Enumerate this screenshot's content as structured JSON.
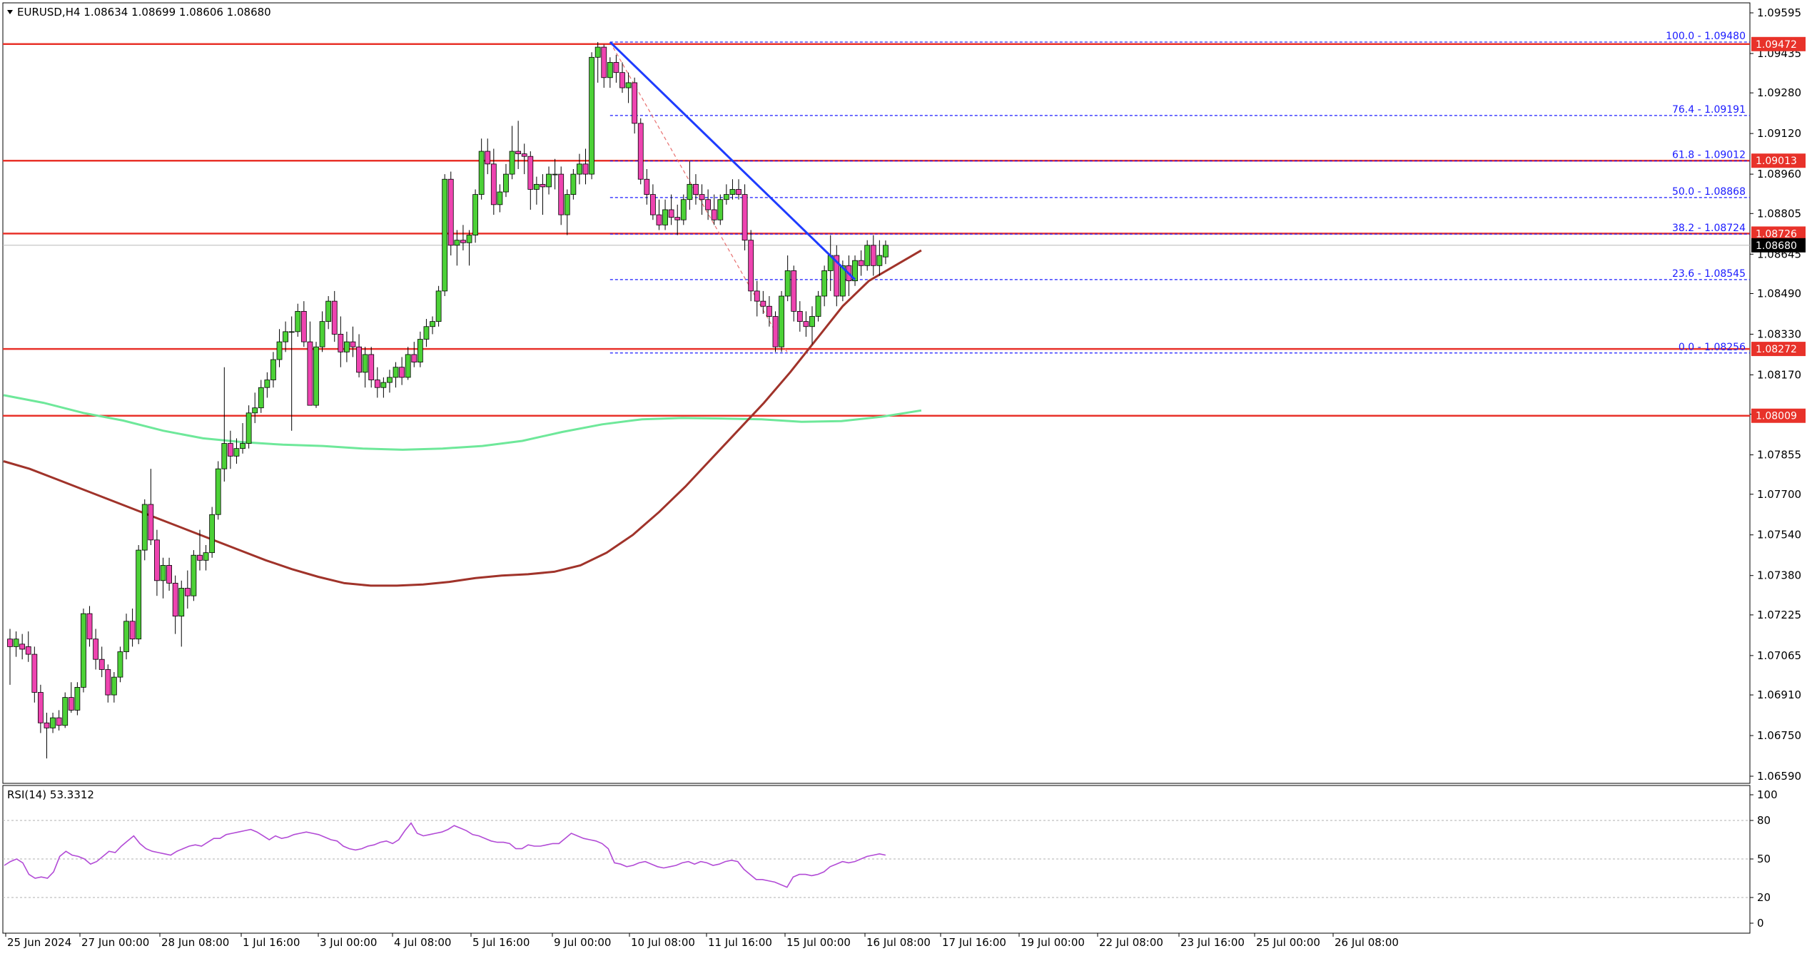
{
  "header": {
    "symbol_line": "EURUSD,H4  1.08634 1.08699 1.08606 1.08680",
    "rsi_line": "RSI(14) 53.3312"
  },
  "colors": {
    "bull": "#4cd137",
    "bear": "#ee44b0",
    "resistance": "#e8322a",
    "trend": "#1e3cff",
    "fib": "#1a1aff",
    "ma_fast": "#a0332a",
    "ma_slow": "#6ee89a",
    "rsi": "#b24bd6",
    "current": "#000000"
  },
  "chart_data": {
    "type": "candlestick",
    "symbol": "EURUSD",
    "timeframe": "H4",
    "ohlc": {
      "open": 1.08634,
      "high": 1.08699,
      "low": 1.08606,
      "close": 1.0868
    },
    "price_ticks": [
      "1.09595",
      "1.09435",
      "1.09280",
      "1.09120",
      "1.08960",
      "1.08805",
      "1.08645",
      "1.08490",
      "1.08330",
      "1.08170",
      "1.08015",
      "1.07855",
      "1.07700",
      "1.07540",
      "1.07380",
      "1.07225",
      "1.07065",
      "1.06910",
      "1.06750",
      "1.06590"
    ],
    "price_range": [
      1.0659,
      1.09595
    ],
    "time_labels": [
      "25 Jun 2024",
      "27 Jun 00:00",
      "28 Jun 08:00",
      "1 Jul 16:00",
      "3 Jul 00:00",
      "4 Jul 08:00",
      "5 Jul 16:00",
      "9 Jul 00:00",
      "10 Jul 08:00",
      "11 Jul 16:00",
      "15 Jul 00:00",
      "16 Jul 08:00",
      "17 Jul 16:00",
      "19 Jul 00:00",
      "22 Jul 08:00",
      "23 Jul 16:00",
      "25 Jul 00:00",
      "26 Jul 08:00"
    ],
    "resistance_levels": [
      {
        "price": 1.09472,
        "label": "1.09472"
      },
      {
        "price": 1.09013,
        "label": "1.09013"
      },
      {
        "price": 1.08726,
        "label": "1.08726"
      },
      {
        "price": 1.08272,
        "label": "1.08272"
      },
      {
        "price": 1.08009,
        "label": "1.08009"
      }
    ],
    "current_price": {
      "price": 1.0868,
      "label": "1.08680"
    },
    "fibonacci": [
      {
        "price": 1.0948,
        "label": "100.0 - 1.09480"
      },
      {
        "price": 1.09191,
        "label": "76.4 - 1.09191"
      },
      {
        "price": 1.09012,
        "label": "61.8 - 1.09012"
      },
      {
        "price": 1.08868,
        "label": "50.0 - 1.08868"
      },
      {
        "price": 1.08724,
        "label": "38.2 - 1.08724"
      },
      {
        "price": 1.08545,
        "label": "23.6 - 1.08545"
      },
      {
        "price": 1.08256,
        "label": "0.0 - 1.08256"
      }
    ],
    "fib_start_index": 98,
    "fib_swing": {
      "from_index": 98,
      "from_price": 1.0948,
      "to_index": 127,
      "to_price": 1.08256
    },
    "trendline": {
      "from_index": 98,
      "from_price": 1.0948,
      "to_index": 138,
      "to_price": 1.08545
    },
    "ma_fast": [
      1.0783,
      1.078,
      1.0776,
      1.0772,
      1.0768,
      1.0764,
      1.076,
      1.0756,
      1.0752,
      1.0748,
      1.0744,
      1.07405,
      1.07375,
      1.0735,
      1.0734,
      1.0734,
      1.07345,
      1.07355,
      1.0737,
      1.0738,
      1.07385,
      1.07395,
      1.0742,
      1.0747,
      1.0754,
      1.0763,
      1.0773,
      1.0784,
      1.0795,
      1.0806,
      1.0818,
      1.0831,
      1.0844,
      1.0854,
      1.086,
      1.0866
    ],
    "ma_slow": [
      1.0809,
      1.0806,
      1.0802,
      1.0799,
      1.0795,
      1.0792,
      1.07905,
      1.07895,
      1.0789,
      1.0788,
      1.07875,
      1.0788,
      1.0789,
      1.0791,
      1.07945,
      1.07975,
      1.07995,
      1.08,
      1.07998,
      1.07995,
      1.07985,
      1.07988,
      1.08005,
      1.0803
    ],
    "candles": [
      [
        1.0713,
        1.0717,
        1.0695,
        1.071
      ],
      [
        1.071,
        1.0716,
        1.0706,
        1.0713
      ],
      [
        1.0711,
        1.0715,
        1.0705,
        1.0709
      ],
      [
        1.071,
        1.0716,
        1.0704,
        1.0707
      ],
      [
        1.0707,
        1.071,
        1.0688,
        1.0692
      ],
      [
        1.0692,
        1.0695,
        1.0676,
        1.068
      ],
      [
        1.068,
        1.0684,
        1.0666,
        1.0678
      ],
      [
        1.0678,
        1.0684,
        1.0676,
        1.0682
      ],
      [
        1.0682,
        1.0685,
        1.0677,
        1.0679
      ],
      [
        1.0679,
        1.0692,
        1.0678,
        1.069
      ],
      [
        1.069,
        1.0696,
        1.0684,
        1.0685
      ],
      [
        1.0685,
        1.0696,
        1.0683,
        1.0694
      ],
      [
        1.0694,
        1.0725,
        1.0692,
        1.0723
      ],
      [
        1.0723,
        1.0726,
        1.071,
        1.0713
      ],
      [
        1.0713,
        1.0717,
        1.0701,
        1.0705
      ],
      [
        1.0705,
        1.071,
        1.0698,
        1.0701
      ],
      [
        1.0701,
        1.0703,
        1.0688,
        1.0691
      ],
      [
        1.0691,
        1.07,
        1.0688,
        1.0698
      ],
      [
        1.0698,
        1.071,
        1.0696,
        1.0708
      ],
      [
        1.0708,
        1.0723,
        1.0705,
        1.072
      ],
      [
        1.072,
        1.0725,
        1.071,
        1.0713
      ],
      [
        1.0713,
        1.075,
        1.0711,
        1.0748
      ],
      [
        1.0748,
        1.0768,
        1.0744,
        1.0766
      ],
      [
        1.0766,
        1.078,
        1.075,
        1.0752
      ],
      [
        1.0752,
        1.0756,
        1.073,
        1.0736
      ],
      [
        1.0736,
        1.0745,
        1.0729,
        1.0742
      ],
      [
        1.0742,
        1.0745,
        1.0732,
        1.0735
      ],
      [
        1.0735,
        1.0738,
        1.0715,
        1.0722
      ],
      [
        1.0722,
        1.0736,
        1.071,
        1.0733
      ],
      [
        1.0733,
        1.074,
        1.0725,
        1.073
      ],
      [
        1.073,
        1.0748,
        1.0728,
        1.0746
      ],
      [
        1.0746,
        1.0756,
        1.074,
        1.0744
      ],
      [
        1.0744,
        1.075,
        1.074,
        1.0747
      ],
      [
        1.0747,
        1.0765,
        1.0745,
        1.0762
      ],
      [
        1.0762,
        1.0783,
        1.076,
        1.078
      ],
      [
        1.078,
        1.082,
        1.0775,
        1.079
      ],
      [
        1.079,
        1.0795,
        1.078,
        1.0785
      ],
      [
        1.0785,
        1.0792,
        1.0782,
        1.0788
      ],
      [
        1.0788,
        1.0798,
        1.0786,
        1.079
      ],
      [
        1.079,
        1.0805,
        1.0788,
        1.0802
      ],
      [
        1.0802,
        1.081,
        1.0798,
        1.0804
      ],
      [
        1.0804,
        1.0815,
        1.0802,
        1.0812
      ],
      [
        1.0812,
        1.0818,
        1.0808,
        1.0815
      ],
      [
        1.0815,
        1.0826,
        1.0812,
        1.0823
      ],
      [
        1.0823,
        1.0835,
        1.082,
        1.083
      ],
      [
        1.083,
        1.0838,
        1.0826,
        1.0834
      ],
      [
        1.0834,
        1.084,
        1.0795,
        1.0834
      ],
      [
        1.0834,
        1.0845,
        1.0832,
        1.0842
      ],
      [
        1.0842,
        1.0846,
        1.0828,
        1.083
      ],
      [
        1.083,
        1.0838,
        1.0805,
        1.0805
      ],
      [
        1.0805,
        1.083,
        1.0804,
        1.0828
      ],
      [
        1.0828,
        1.0842,
        1.0826,
        1.0838
      ],
      [
        1.0838,
        1.0848,
        1.0835,
        1.0846
      ],
      [
        1.0846,
        1.085,
        1.083,
        1.0833
      ],
      [
        1.0833,
        1.084,
        1.082,
        1.0826
      ],
      [
        1.0826,
        1.0834,
        1.0822,
        1.083
      ],
      [
        1.083,
        1.0836,
        1.0824,
        1.0828
      ],
      [
        1.0828,
        1.0833,
        1.0816,
        1.0818
      ],
      [
        1.0818,
        1.0828,
        1.0812,
        1.0825
      ],
      [
        1.0825,
        1.0828,
        1.0812,
        1.0815
      ],
      [
        1.0815,
        1.082,
        1.0808,
        1.0812
      ],
      [
        1.0812,
        1.0816,
        1.0808,
        1.0814
      ],
      [
        1.0814,
        1.0819,
        1.081,
        1.0816
      ],
      [
        1.0816,
        1.0822,
        1.0812,
        1.082
      ],
      [
        1.082,
        1.0824,
        1.0813,
        1.0816
      ],
      [
        1.0816,
        1.0828,
        1.0815,
        1.0825
      ],
      [
        1.0825,
        1.083,
        1.082,
        1.0822
      ],
      [
        1.0822,
        1.0834,
        1.082,
        1.0831
      ],
      [
        1.0831,
        1.0839,
        1.0828,
        1.0836
      ],
      [
        1.0836,
        1.084,
        1.0833,
        1.0838
      ],
      [
        1.0838,
        1.0852,
        1.0836,
        1.085
      ],
      [
        1.085,
        1.0896,
        1.0848,
        1.0894
      ],
      [
        1.0894,
        1.0897,
        1.0864,
        1.0868
      ],
      [
        1.0868,
        1.0874,
        1.086,
        1.087
      ],
      [
        1.087,
        1.0876,
        1.0866,
        1.0869
      ],
      [
        1.0869,
        1.0874,
        1.086,
        1.0872
      ],
      [
        1.0872,
        1.089,
        1.0869,
        1.0888
      ],
      [
        1.0888,
        1.091,
        1.0886,
        1.0905
      ],
      [
        1.0905,
        1.091,
        1.0896,
        1.09
      ],
      [
        1.09,
        1.0906,
        1.088,
        1.0884
      ],
      [
        1.0884,
        1.0892,
        1.0881,
        1.0889
      ],
      [
        1.0889,
        1.09,
        1.0887,
        1.0896
      ],
      [
        1.0896,
        1.0915,
        1.0894,
        1.0905
      ],
      [
        1.0905,
        1.0917,
        1.0898,
        1.0904
      ],
      [
        1.0904,
        1.0908,
        1.0896,
        1.0903
      ],
      [
        1.0903,
        1.0905,
        1.0882,
        1.089
      ],
      [
        1.089,
        1.0895,
        1.0884,
        1.0892
      ],
      [
        1.0892,
        1.0896,
        1.088,
        1.0891
      ],
      [
        1.0891,
        1.0899,
        1.0888,
        1.0896
      ],
      [
        1.0896,
        1.0902,
        1.089,
        1.0896
      ],
      [
        1.0896,
        1.0899,
        1.0876,
        1.088
      ],
      [
        1.088,
        1.089,
        1.0872,
        1.0888
      ],
      [
        1.0888,
        1.0898,
        1.0886,
        1.0896
      ],
      [
        1.0896,
        1.0904,
        1.0892,
        1.09
      ],
      [
        1.09,
        1.0906,
        1.0892,
        1.0896
      ],
      [
        1.0896,
        1.0944,
        1.0894,
        1.0942
      ],
      [
        1.0942,
        1.0948,
        1.0932,
        1.0946
      ],
      [
        1.0946,
        1.0947,
        1.093,
        1.0934
      ],
      [
        1.0934,
        1.0942,
        1.093,
        1.094
      ],
      [
        1.094,
        1.0943,
        1.0932,
        1.0936
      ],
      [
        1.0936,
        1.094,
        1.0928,
        1.093
      ],
      [
        1.093,
        1.0936,
        1.0924,
        1.0932
      ],
      [
        1.0932,
        1.0934,
        1.0912,
        1.0916
      ],
      [
        1.0916,
        1.0918,
        1.0892,
        1.0894
      ],
      [
        1.0894,
        1.0898,
        1.0884,
        1.0888
      ],
      [
        1.0888,
        1.0892,
        1.0878,
        1.088
      ],
      [
        1.088,
        1.0886,
        1.0874,
        1.0876
      ],
      [
        1.0876,
        1.0886,
        1.0874,
        1.0882
      ],
      [
        1.0882,
        1.0888,
        1.0876,
        1.0879
      ],
      [
        1.0879,
        1.0884,
        1.0872,
        1.0878
      ],
      [
        1.0878,
        1.0888,
        1.0876,
        1.0886
      ],
      [
        1.0886,
        1.0901,
        1.0882,
        1.0892
      ],
      [
        1.0892,
        1.0896,
        1.0884,
        1.0888
      ],
      [
        1.0888,
        1.0892,
        1.088,
        1.0886
      ],
      [
        1.0886,
        1.089,
        1.0878,
        1.0882
      ],
      [
        1.0882,
        1.0888,
        1.0876,
        1.0878
      ],
      [
        1.0878,
        1.0888,
        1.0876,
        1.0886
      ],
      [
        1.0886,
        1.0892,
        1.0884,
        1.0888
      ],
      [
        1.0888,
        1.0894,
        1.0886,
        1.089
      ],
      [
        1.089,
        1.0894,
        1.0886,
        1.0888
      ],
      [
        1.0888,
        1.0892,
        1.0866,
        1.087
      ],
      [
        1.087,
        1.0874,
        1.0846,
        1.085
      ],
      [
        1.085,
        1.0854,
        1.084,
        1.0846
      ],
      [
        1.0846,
        1.085,
        1.0841,
        1.0844
      ],
      [
        1.0844,
        1.0848,
        1.0836,
        1.084
      ],
      [
        1.084,
        1.0842,
        1.0826,
        1.0828
      ],
      [
        1.0828,
        1.085,
        1.0826,
        1.0848
      ],
      [
        1.0848,
        1.0864,
        1.0846,
        1.0858
      ],
      [
        1.0858,
        1.086,
        1.0838,
        1.0842
      ],
      [
        1.0842,
        1.0846,
        1.0834,
        1.0838
      ],
      [
        1.0838,
        1.0842,
        1.0832,
        1.0836
      ],
      [
        1.0836,
        1.0844,
        1.0829,
        1.084
      ],
      [
        1.084,
        1.085,
        1.0838,
        1.0848
      ],
      [
        1.0848,
        1.086,
        1.0844,
        1.0858
      ],
      [
        1.0858,
        1.0872,
        1.085,
        1.0864
      ],
      [
        1.0864,
        1.0868,
        1.0844,
        1.0848
      ],
      [
        1.0848,
        1.0862,
        1.0846,
        1.086
      ],
      [
        1.086,
        1.0864,
        1.0848,
        1.0854
      ],
      [
        1.0854,
        1.0864,
        1.0852,
        1.0862
      ],
      [
        1.0862,
        1.0866,
        1.0856,
        1.086
      ],
      [
        1.086,
        1.087,
        1.0858,
        1.0868
      ],
      [
        1.0868,
        1.0872,
        1.0856,
        1.086
      ],
      [
        1.086,
        1.087,
        1.0856,
        1.0864
      ],
      [
        1.08634,
        1.08699,
        1.08606,
        1.0868
      ]
    ],
    "rsi": {
      "name": "RSI(14)",
      "value": 53.3312,
      "range": [
        0,
        100
      ],
      "ticks": [
        100,
        80,
        50,
        20,
        0
      ],
      "levels": [
        80,
        20
      ],
      "values": [
        45,
        48,
        50,
        47,
        38,
        35,
        36,
        35,
        40,
        52,
        56,
        53,
        52,
        50,
        46,
        48,
        52,
        56,
        55,
        60,
        64,
        68,
        62,
        58,
        56,
        55,
        54,
        53,
        56,
        58,
        60,
        61,
        60,
        63,
        66,
        66,
        69,
        70,
        71,
        72,
        73,
        71,
        68,
        65,
        68,
        66,
        67,
        69,
        70,
        71,
        70,
        69,
        67,
        65,
        64,
        60,
        58,
        57,
        58,
        60,
        61,
        63,
        64,
        62,
        65,
        72,
        78,
        70,
        68,
        69,
        70,
        71,
        73,
        76,
        74,
        72,
        69,
        68,
        66,
        64,
        63,
        63,
        62,
        58,
        58,
        61,
        60,
        60,
        61,
        62,
        62,
        66,
        70,
        68,
        66,
        65,
        64,
        62,
        58,
        47,
        46,
        44,
        45,
        47,
        48,
        46,
        44,
        43,
        44,
        45,
        47,
        48,
        46,
        48,
        47,
        45,
        46,
        48,
        49,
        48,
        42,
        38,
        34,
        34,
        33,
        32,
        30,
        28,
        36,
        38,
        38,
        37,
        38,
        40,
        44,
        46,
        48,
        47,
        48,
        50,
        52,
        53,
        54,
        53
      ]
    }
  }
}
